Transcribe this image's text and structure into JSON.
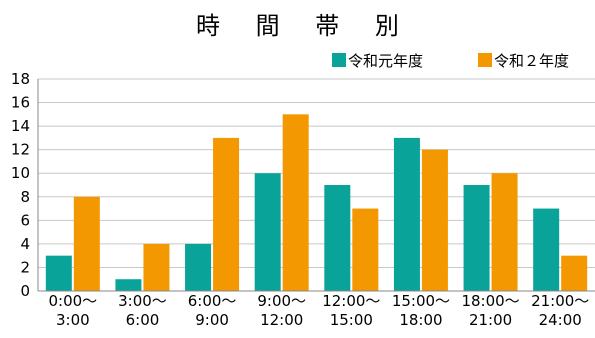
{
  "chart_data": {
    "type": "bar",
    "title": "時 間 帯 別",
    "xlabel": "",
    "ylabel": "",
    "ylim": [
      0,
      18
    ],
    "yticks": [
      0,
      2,
      4,
      6,
      8,
      10,
      12,
      14,
      16,
      18
    ],
    "categories": [
      [
        "0:00～",
        "3:00"
      ],
      [
        "3:00～",
        "6:00"
      ],
      [
        "6:00～",
        "9:00"
      ],
      [
        "9:00～",
        "12:00"
      ],
      [
        "12:00～",
        "15:00"
      ],
      [
        "15:00～",
        "18:00"
      ],
      [
        "18:00～",
        "21:00"
      ],
      [
        "21:00～",
        "24:00"
      ]
    ],
    "series": [
      {
        "name": "令和元年度",
        "color": "#0aa39a",
        "values": [
          3,
          1,
          4,
          10,
          9,
          13,
          9,
          7
        ]
      },
      {
        "name": "令和２年度",
        "color": "#f39800",
        "values": [
          8,
          4,
          13,
          15,
          7,
          12,
          10,
          3
        ]
      }
    ],
    "grid": true,
    "legend_position": "top-right"
  }
}
